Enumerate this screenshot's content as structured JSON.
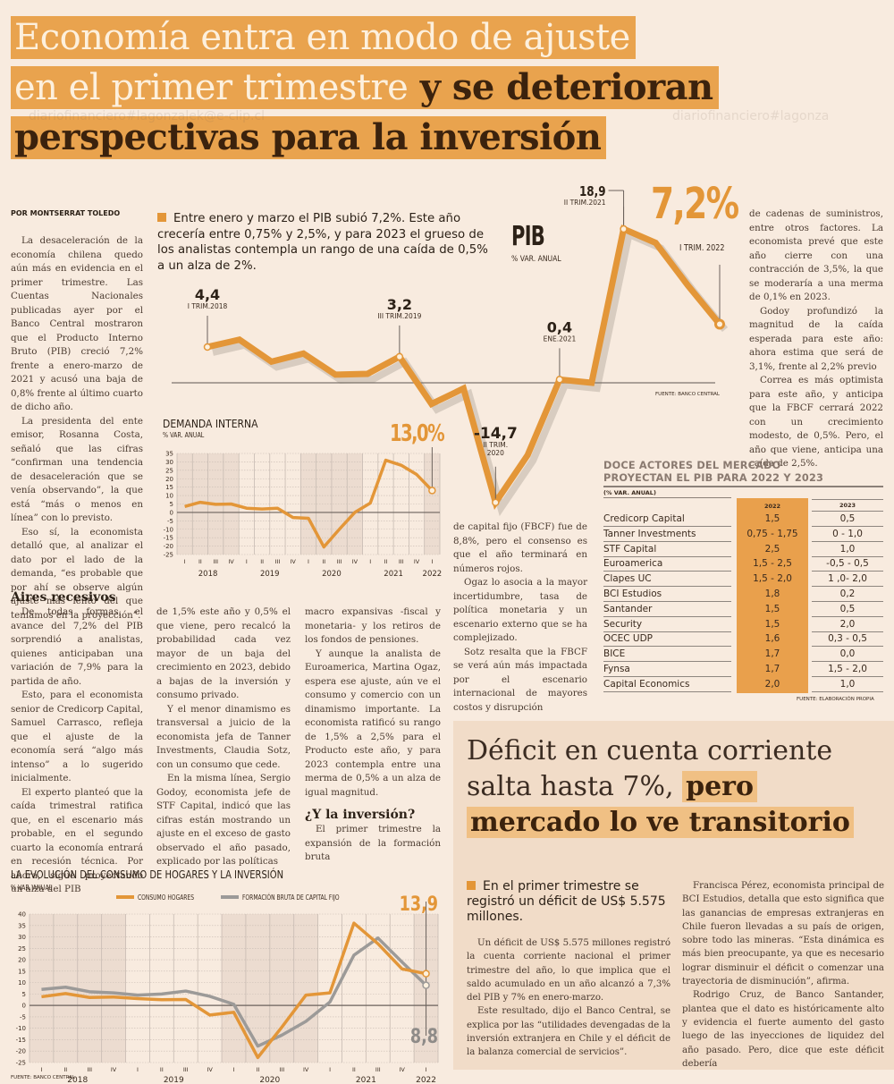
{
  "headline": {
    "line1": "Economía entra en modo de ajuste",
    "line2_light": "en el primer trimestre",
    "line2_dark": " y se deterioran",
    "line3": "perspectivas para la inversión"
  },
  "watermarks": [
    "diariofinanciero#lagonzalek@e-clip.cl",
    "diariofinanciero#lagonza",
    "diariofinanciero#lagonzalek@e-clip.cl"
  ],
  "byline": "POR MONTSERRAT TOLEDO",
  "lead": "Entre enero y marzo el PIB subió 7,2%. Este año crecería entre 0,75% y 2,5%, y para 2023 el grueso de los analistas contempla un rango de una caída de 0,5% a un alza de 2%.",
  "article": {
    "col1": [
      "La desaceleración de la economía chilena quedo aún más en evidencia en el primer trimestre. Las Cuentas Nacionales publicadas ayer por el Banco Central mostraron que el Producto Interno Bruto (PIB) creció 7,2% frente a enero-marzo de 2021 y acusó una baja de 0,8% frente al último cuarto de dicho año.",
      "La presidenta del ente emisor, Rosanna Costa, señaló que las cifras “confirman una tendencia de desaceleración que se venía observando”, la que está “más o menos en línea” con lo previsto.",
      "Eso sí, la economista detalló que, al analizar el dato por el lado de la demanda, “es probable que por ahí se observe algún ajuste más lento del que teníamos en la proyección”."
    ],
    "subhead1": "Aires recesivos",
    "col1b": [
      "De todas formas, el avance del 7,2% del PIB sorprendió a analistas, quienes anticipaban una variación de 7,9% para la partida de año.",
      "Esto, para el economista senior de Credicorp Capital, Samuel Carrasco, refleja que el ajuste de la economía será “algo más intenso” a lo sugerido inicialmente.",
      "El experto planteó que la caída trimestral ratifica que, en el escenario más probable, en el segundo cuarto la economía entrará en recesión técnica. Por ahora, sigue proyectando un alza del PIB"
    ],
    "col2": [
      "de 1,5% este año y 0,5% el que viene, pero recalcó la probabilidad cada vez mayor de un baja del crecimiento en 2023, debido a bajas de la inversión y consumo privado.",
      "Y el menor dinamismo es transversal a juicio de la economista jefa de Tanner Investments, Claudia Sotz, con un consumo que cede.",
      "En la misma línea, Sergio Godoy, economista jefe de STF Capital, indicó que las cifras están mostrando un ajuste en el exceso de gasto observado el año pasado, explicado por las políticas"
    ],
    "col3": [
      "macro expansivas -fiscal y monetaria- y los retiros de los fondos de pensiones.",
      "Y aunque la analista de Euroamerica, Martina Ogaz, espera ese ajuste, aún ve el consumo y comercio con un dinamismo importante. La economista ratificó su rango de 1,5% a 2,5% para el Producto este año, y para 2023 contempla entre una merma de 0,5% a un alza de igual magnitud."
    ],
    "subhead2": "¿Y la inversión?",
    "col3b": "El primer trimestre la expansión de la formación bruta",
    "col4": [
      "de capital fijo (FBCF) fue de 8,8%, pero el consenso es que el año terminará en números rojos.",
      "Ogaz lo asocia a la mayor incertidumbre, tasa de política monetaria y un escenario externo que se ha complejizado.",
      "Sotz resalta que la FBCF se verá aún más impactada por el escenario internacional de mayores costos y disrupción"
    ],
    "col5": [
      "de cadenas de suministros, entre otros factores. La economista prevé que este año cierre con una contracción de 3,5%, la que se moderaría a una merma de 0,1% en 2023.",
      "Godoy profundizó la magnitud de la caída esperada para este año: ahora estima que será de 3,1%, frente al 2,2% previo",
      "Correa es más optimista para este año, y anticipa que la FBCF cerrará 2022 con un crecimiento modesto, de 0,5%. Pero, el año que viene, anticipa una caída de 2,5%."
    ]
  },
  "chart_data": [
    {
      "type": "line",
      "title": "PIB",
      "ylabel": "% VAR. ANUAL",
      "source": "FUENTE: BANCO CENTRAL",
      "headline_value": "7,2%",
      "headline_label": "I TRIM. 2022",
      "categories": [
        "I-2018",
        "II-2018",
        "III-2018",
        "IV-2018",
        "I-2019",
        "II-2019",
        "III-2019",
        "IV-2019",
        "I-2020",
        "II-2020",
        "III-2020",
        "IV-2020",
        "I-2021",
        "II-2021",
        "III-2021",
        "IV-2021",
        "I-2022"
      ],
      "values": [
        4.4,
        5.3,
        2.6,
        3.6,
        1.0,
        1.1,
        3.2,
        -2.6,
        -0.7,
        -14.7,
        -8.9,
        0.4,
        0.0,
        18.9,
        17.2,
        12.0,
        7.2
      ],
      "annotations": [
        {
          "value": "4,4",
          "label": "I TRIM.2018",
          "index": 0
        },
        {
          "value": "3,2",
          "label": "III TRIM.2019",
          "index": 6
        },
        {
          "value": "-14,7",
          "label": "II TRIM. 2020",
          "index": 9
        },
        {
          "value": "0,4",
          "label": "ENE.2021",
          "index": 11
        },
        {
          "value": "18,9",
          "label": "II TRIM.2021",
          "index": 13
        }
      ],
      "color": "#e39638"
    },
    {
      "type": "line",
      "title": "DEMANDA INTERNA",
      "ylabel": "% VAR. ANUAL",
      "headline_value": "13,0%",
      "ylim": [
        -25,
        35
      ],
      "yticks": [
        35,
        30,
        25,
        20,
        15,
        10,
        5,
        0,
        -5,
        -10,
        -15,
        -20,
        -25
      ],
      "quarters": [
        "I",
        "II",
        "III",
        "IV",
        "I",
        "II",
        "III",
        "IV",
        "I",
        "II",
        "III",
        "IV",
        "I",
        "II",
        "III",
        "IV",
        "I"
      ],
      "years": [
        "2018",
        "2019",
        "2020",
        "2021",
        "2022"
      ],
      "values": [
        3.5,
        6.0,
        4.8,
        5.0,
        2.5,
        2.0,
        2.5,
        -3.0,
        -3.5,
        -20.5,
        -10.0,
        0.0,
        5.5,
        31.0,
        28.0,
        22.5,
        13.0
      ],
      "color": "#e39638"
    },
    {
      "type": "line",
      "title": "LA EVOLUCIÓN DEL CONSUMO DE HOGARES Y LA INVERSIÓN",
      "ylabel": "% VAR. ANUAL",
      "source": "FUENTE: BANCO CENTRAL",
      "ylim": [
        -25,
        40
      ],
      "yticks": [
        40,
        35,
        30,
        25,
        20,
        15,
        10,
        5,
        0,
        -5,
        -10,
        -15,
        -20,
        -25
      ],
      "quarters": [
        "I",
        "II",
        "III",
        "IV",
        "I",
        "II",
        "III",
        "IV",
        "I",
        "II",
        "III",
        "IV",
        "I",
        "II",
        "III",
        "IV",
        "I"
      ],
      "years": [
        "2018",
        "2019",
        "2020",
        "2021",
        "2022"
      ],
      "series": [
        {
          "name": "CONSUMO HOGARES",
          "color": "#e39638",
          "end_label": "13,9",
          "values": [
            3.8,
            5.2,
            3.5,
            3.7,
            3.0,
            2.5,
            2.6,
            -4.2,
            -3.0,
            -22.8,
            -9.5,
            4.5,
            5.5,
            36.0,
            27.0,
            16.0,
            13.9
          ]
        },
        {
          "name": "FORMACIÓN BRUTA DE CAPITAL FIJO",
          "color": "#9c9a98",
          "end_label": "8,8",
          "values": [
            7.0,
            8.0,
            6.0,
            5.5,
            4.5,
            5.0,
            6.3,
            4.0,
            0.5,
            -17.8,
            -13.0,
            -7.0,
            1.5,
            22.0,
            29.5,
            19.0,
            8.8
          ]
        }
      ]
    }
  ],
  "table": {
    "title_line1": "DOCE ACTORES DEL MERCADO",
    "title_line2": "PROYECTAN EL PIB PARA 2022 Y 2023",
    "unit": "(% VAR. ANUAL)",
    "headers": [
      "2022",
      "2023"
    ],
    "rows": [
      [
        "Credicorp Capital",
        "1,5",
        "0,5"
      ],
      [
        "Tanner Investments",
        "0,75 - 1,75",
        "0 - 1,0"
      ],
      [
        "STF Capital",
        "2,5",
        "1,0"
      ],
      [
        "Euroamerica",
        "1,5 - 2,5",
        "-0,5 - 0,5"
      ],
      [
        "Clapes UC",
        "1,5 - 2,0",
        "1 ,0- 2,0"
      ],
      [
        "BCI Estudios",
        "1,8",
        "0,2"
      ],
      [
        "Santander",
        "1,5",
        "0,5"
      ],
      [
        "Security",
        "1,5",
        "2,0"
      ],
      [
        "OCEC UDP",
        "1,6",
        "0,3 - 0,5"
      ],
      [
        "BICE",
        "1,7",
        "0,0"
      ],
      [
        "Fynsa",
        "1,7",
        "1,5 - 2,0"
      ],
      [
        "Capital Economics",
        "2,0",
        "1,0"
      ]
    ],
    "source": "FUENTE: ELABORACIÓN PROPIA"
  },
  "deficit": {
    "title_plain": "Déficit en cuenta corriente salta hasta 7%, ",
    "title_hl1": "pero",
    "title_hl2": "mercado lo ve transitorio",
    "lead": "En el primer trimestre se registró un déficit de US$ 5.575 millones.",
    "col1": [
      "Un déficit de US$ 5.575 millones registró la cuenta corriente nacional el primer trimestre del año, lo que implica que el saldo acumulado en un año alcanzó a 7,3% del PIB y 7% en enero-marzo.",
      "Este resultado, dijo el Banco Central, se explica por las “utilidades devengadas de la inversión extranjera en Chile y el déficit de la balanza comercial de servicios”."
    ],
    "col2": [
      "Francisca Pérez, economista principal de BCI Estudios, detalla que esto significa que las ganancias de empresas extranjeras en Chile fueron llevadas a su país de origen, sobre todo las mineras. “Esta dinámica es más bien preocupante, ya que es necesario lograr disminuir el déficit o comenzar una trayectoria de disminución”, afirma.",
      "Rodrigo Cruz, de Banco Santander, plantea que el dato es históricamente alto y evidencia el fuerte aumento del gasto luego de las inyecciones de liquidez del año pasado. Pero, dice que este déficit debería"
    ]
  }
}
